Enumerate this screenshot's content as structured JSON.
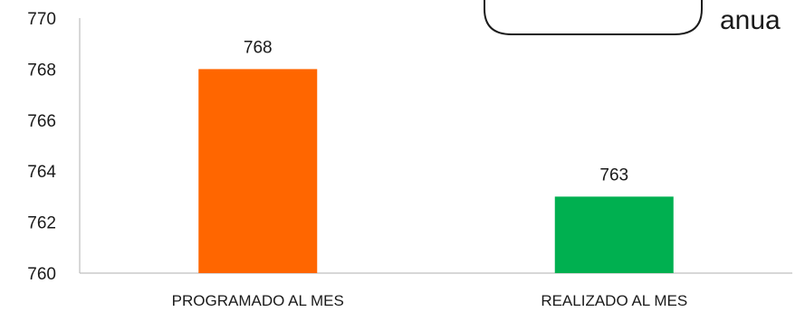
{
  "chart_data": {
    "type": "bar",
    "categories": [
      "PROGRAMADO AL MES",
      "REALIZADO AL MES"
    ],
    "values": [
      768,
      763
    ],
    "data_labels": [
      "768",
      "763"
    ],
    "colors": [
      "#FF6600",
      "#00B050"
    ],
    "ylim": [
      760,
      770
    ],
    "yticks": [
      "760",
      "762",
      "764",
      "766",
      "768",
      "770"
    ],
    "grid": false,
    "legend": "none"
  },
  "callout": {
    "text": "anua"
  }
}
